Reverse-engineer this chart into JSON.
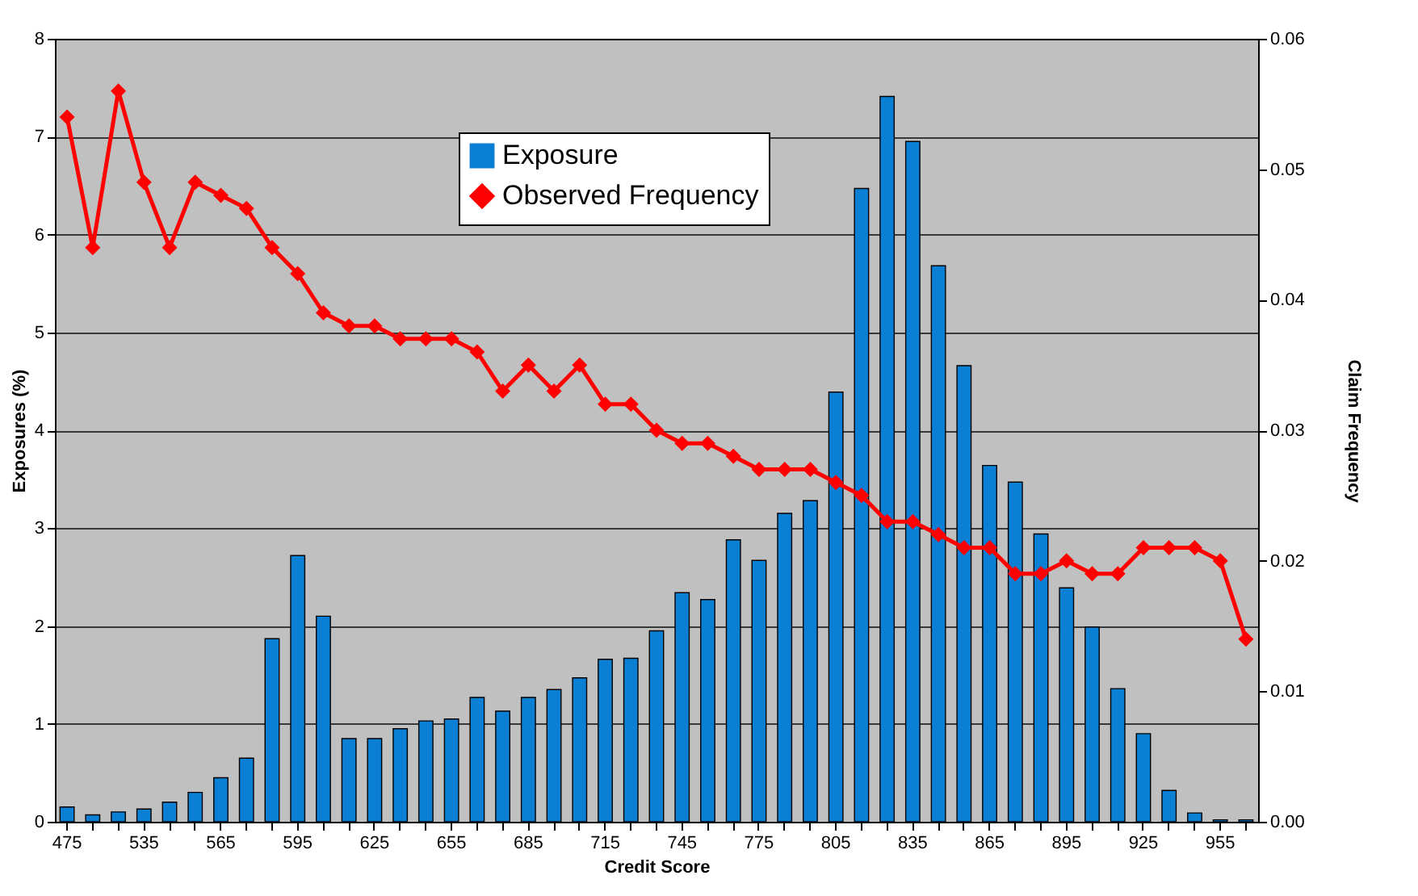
{
  "chart_data": {
    "type": "bar",
    "xlabel": "Credit Score",
    "ylabel": "Exposures (%)",
    "y2label": "Claim Frequency",
    "categories": [
      "475",
      null,
      null,
      "535",
      null,
      null,
      "565",
      null,
      null,
      "595",
      null,
      null,
      "625",
      null,
      null,
      "655",
      null,
      null,
      "685",
      null,
      null,
      "715",
      null,
      null,
      "745",
      null,
      null,
      "775",
      null,
      null,
      "805",
      null,
      null,
      "835",
      null,
      null,
      "865",
      null,
      null,
      "895",
      null,
      null,
      "925",
      null,
      null,
      "955",
      null
    ],
    "series": [
      {
        "name": "Exposure",
        "color": "#0a7fd4",
        "values": [
          0.15,
          0.07,
          0.1,
          0.13,
          0.2,
          0.3,
          0.45,
          0.65,
          1.87,
          2.72,
          2.1,
          0.85,
          0.85,
          0.95,
          1.03,
          1.05,
          1.27,
          1.13,
          1.27,
          1.35,
          1.47,
          1.66,
          1.67,
          1.95,
          2.34,
          2.27,
          2.88,
          2.67,
          3.15,
          3.28,
          4.39,
          6.47,
          7.41,
          6.95,
          5.68,
          4.66,
          3.64,
          3.47,
          2.94,
          2.39,
          1.99,
          1.36,
          0.9,
          0.32,
          0.09,
          0.02,
          0.02
        ]
      },
      {
        "name": "Observed Frequency",
        "type": "line",
        "axis": "y2",
        "color": "#ff0000",
        "marker": "diamond",
        "values": [
          0.054,
          0.044,
          0.056,
          0.049,
          0.044,
          0.049,
          0.048,
          0.047,
          0.044,
          0.042,
          0.039,
          0.038,
          0.038,
          0.037,
          0.037,
          0.037,
          0.036,
          0.033,
          0.035,
          0.033,
          0.035,
          0.032,
          0.032,
          0.03,
          0.029,
          0.029,
          0.028,
          0.027,
          0.027,
          0.027,
          0.026,
          0.025,
          0.023,
          0.023,
          0.022,
          0.021,
          0.021,
          0.019,
          0.019,
          0.02,
          0.019,
          0.019,
          0.021,
          0.021,
          0.021,
          0.02,
          0.014
        ]
      }
    ],
    "ylim": [
      0,
      8
    ],
    "yticks": [
      0,
      1,
      2,
      3,
      4,
      5,
      6,
      7,
      8
    ],
    "y2lim": [
      0,
      0.06
    ],
    "y2ticks": [
      {
        "value": 0,
        "label": "0.00"
      },
      {
        "value": 0.01,
        "label": "0.01"
      },
      {
        "value": 0.02,
        "label": "0.02"
      },
      {
        "value": 0.03,
        "label": "0.03"
      },
      {
        "value": 0.04,
        "label": "0.04"
      },
      {
        "value": 0.05,
        "label": "0.05"
      },
      {
        "value": 0.06,
        "label": "0.06"
      }
    ],
    "grid": "y",
    "legend": "top"
  }
}
